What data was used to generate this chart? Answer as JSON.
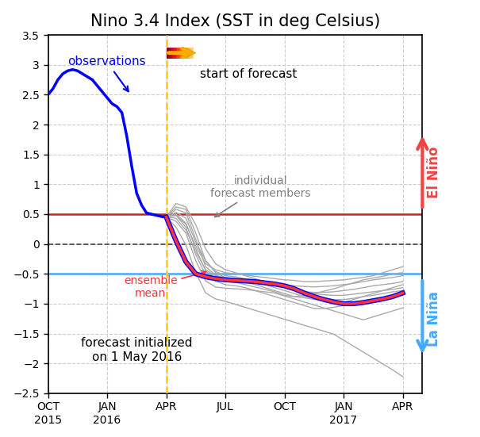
{
  "title": "Nino 3.4 Index (SST in deg Celsius)",
  "ylim": [
    -2.5,
    3.5
  ],
  "yticks": [
    -2.5,
    -2.0,
    -1.5,
    -1.0,
    -0.5,
    0.0,
    0.5,
    1.0,
    1.5,
    2.0,
    2.5,
    3.0,
    3.5
  ],
  "xlim_months": [
    0,
    19
  ],
  "x_tick_labels": [
    "OCT\n2015",
    "JAN\n2016",
    "APR",
    "JUL",
    "OCT",
    "JAN\n2017",
    "APR"
  ],
  "x_tick_positions": [
    0,
    3,
    6,
    9,
    12,
    15,
    18
  ],
  "el_nino_threshold": 0.5,
  "la_nina_threshold": -0.5,
  "forecast_start_x": 6,
  "obs_color": "#0000ff",
  "ensemble_color": "#ff3333",
  "member_color": "#aaaaaa",
  "el_nino_color": "#ee4444",
  "la_nina_color": "#44aaff",
  "threshold_red": "#cc2222",
  "threshold_blue": "#44aaff",
  "zero_line_color": "#444444",
  "forecast_line_color": "#ffcc00",
  "obs_x": [
    0,
    0.25,
    0.5,
    0.75,
    1,
    1.25,
    1.5,
    1.75,
    2,
    2.25,
    2.5,
    2.75,
    3,
    3.25,
    3.5,
    3.75,
    4,
    4.25,
    4.5,
    4.75,
    5,
    5.25,
    5.5,
    5.75,
    6
  ],
  "obs_y": [
    2.5,
    2.6,
    2.75,
    2.85,
    2.9,
    2.92,
    2.9,
    2.85,
    2.8,
    2.75,
    2.65,
    2.55,
    2.45,
    2.35,
    2.3,
    2.2,
    1.8,
    1.3,
    0.85,
    0.65,
    0.52,
    0.5,
    0.48,
    0.46,
    0.45
  ],
  "ensemble_mean_x": [
    6,
    6.5,
    7,
    7.5,
    8,
    8.5,
    9,
    9.5,
    10,
    10.5,
    11,
    11.5,
    12,
    12.5,
    13,
    13.5,
    14,
    14.5,
    15,
    15.5,
    16,
    16.5,
    17,
    17.5,
    18
  ],
  "ensemble_mean_y": [
    0.45,
    0.05,
    -0.3,
    -0.5,
    -0.55,
    -0.58,
    -0.6,
    -0.61,
    -0.62,
    -0.63,
    -0.65,
    -0.67,
    -0.7,
    -0.75,
    -0.82,
    -0.88,
    -0.93,
    -0.97,
    -1.0,
    -1.0,
    -0.98,
    -0.95,
    -0.92,
    -0.88,
    -0.82
  ],
  "members": [
    [
      0.45,
      0.5,
      0.35,
      -0.08,
      -0.45,
      -0.58,
      -0.63,
      -0.64,
      -0.68,
      -0.72,
      -0.76,
      -0.8,
      -0.86,
      -0.88,
      -0.86,
      -0.83,
      -0.79,
      -0.75,
      -0.7,
      -0.65,
      -0.6,
      -0.57,
      -0.54,
      -0.5,
      -0.48
    ],
    [
      0.45,
      0.58,
      0.52,
      0.08,
      -0.38,
      -0.52,
      -0.58,
      -0.59,
      -0.63,
      -0.68,
      -0.73,
      -0.78,
      -0.83,
      -0.88,
      -0.9,
      -0.93,
      -0.95,
      -0.98,
      -0.98,
      -0.93,
      -0.88,
      -0.83,
      -0.78,
      -0.73,
      -0.68
    ],
    [
      0.45,
      0.48,
      0.28,
      -0.18,
      -0.52,
      -0.62,
      -0.68,
      -0.7,
      -0.73,
      -0.78,
      -0.83,
      -0.88,
      -0.93,
      -0.98,
      -1.03,
      -1.08,
      -1.08,
      -1.06,
      -1.03,
      -0.98,
      -0.96,
      -0.93,
      -0.9,
      -0.88,
      -0.86
    ],
    [
      0.45,
      0.62,
      0.58,
      0.18,
      -0.28,
      -0.48,
      -0.56,
      -0.58,
      -0.6,
      -0.63,
      -0.68,
      -0.73,
      -0.78,
      -0.83,
      -0.88,
      -0.9,
      -0.91,
      -0.93,
      -0.93,
      -0.91,
      -0.88,
      -0.86,
      -0.83,
      -0.8,
      -0.78
    ],
    [
      0.45,
      0.28,
      -0.02,
      -0.48,
      -0.82,
      -0.92,
      -0.96,
      -1.01,
      -1.06,
      -1.11,
      -1.16,
      -1.21,
      -1.26,
      -1.31,
      -1.36,
      -1.41,
      -1.46,
      -1.51,
      -1.61,
      -1.71,
      -1.81,
      -1.91,
      -2.01,
      -2.11,
      -2.22
    ],
    [
      0.45,
      0.38,
      0.18,
      -0.28,
      -0.62,
      -0.72,
      -0.74,
      -0.75,
      -0.76,
      -0.78,
      -0.8,
      -0.82,
      -0.87,
      -0.92,
      -0.97,
      -1.02,
      -1.07,
      -1.12,
      -1.17,
      -1.22,
      -1.27,
      -1.22,
      -1.17,
      -1.12,
      -1.07
    ],
    [
      0.45,
      0.43,
      0.23,
      -0.13,
      -0.43,
      -0.53,
      -0.56,
      -0.58,
      -0.6,
      -0.61,
      -0.63,
      -0.65,
      -0.68,
      -0.7,
      -0.71,
      -0.72,
      -0.71,
      -0.7,
      -0.68,
      -0.66,
      -0.63,
      -0.6,
      -0.58,
      -0.56,
      -0.53
    ],
    [
      0.45,
      0.68,
      0.62,
      0.32,
      -0.08,
      -0.33,
      -0.43,
      -0.48,
      -0.53,
      -0.58,
      -0.63,
      -0.68,
      -0.73,
      -0.78,
      -0.8,
      -0.81,
      -0.81,
      -0.8,
      -0.78,
      -0.76,
      -0.73,
      -0.7,
      -0.68,
      -0.66,
      -0.63
    ],
    [
      0.45,
      0.48,
      0.33,
      -0.03,
      -0.33,
      -0.43,
      -0.48,
      -0.5,
      -0.52,
      -0.54,
      -0.56,
      -0.58,
      -0.6,
      -0.61,
      -0.63,
      -0.63,
      -0.62,
      -0.61,
      -0.6,
      -0.58,
      -0.56,
      -0.53,
      -0.48,
      -0.43,
      -0.38
    ],
    [
      0.45,
      0.53,
      0.43,
      0.03,
      -0.28,
      -0.46,
      -0.53,
      -0.55,
      -0.58,
      -0.61,
      -0.64,
      -0.68,
      -0.72,
      -0.76,
      -0.8,
      -0.83,
      -0.85,
      -0.86,
      -0.86,
      -0.84,
      -0.82,
      -0.8,
      -0.78,
      -0.76,
      -0.73
    ]
  ],
  "annotation_obs_text": "observations",
  "annotation_forecast_text": "start of forecast",
  "annotation_member_text": "individual\nforecast members",
  "annotation_ensemble_text": "ensemble\nmean",
  "annotation_forecast_text2": "forecast initialized\non 1 May 2016",
  "el_nino_label": "El Niño",
  "la_nina_label": "La Niña",
  "background_color": "#ffffff"
}
